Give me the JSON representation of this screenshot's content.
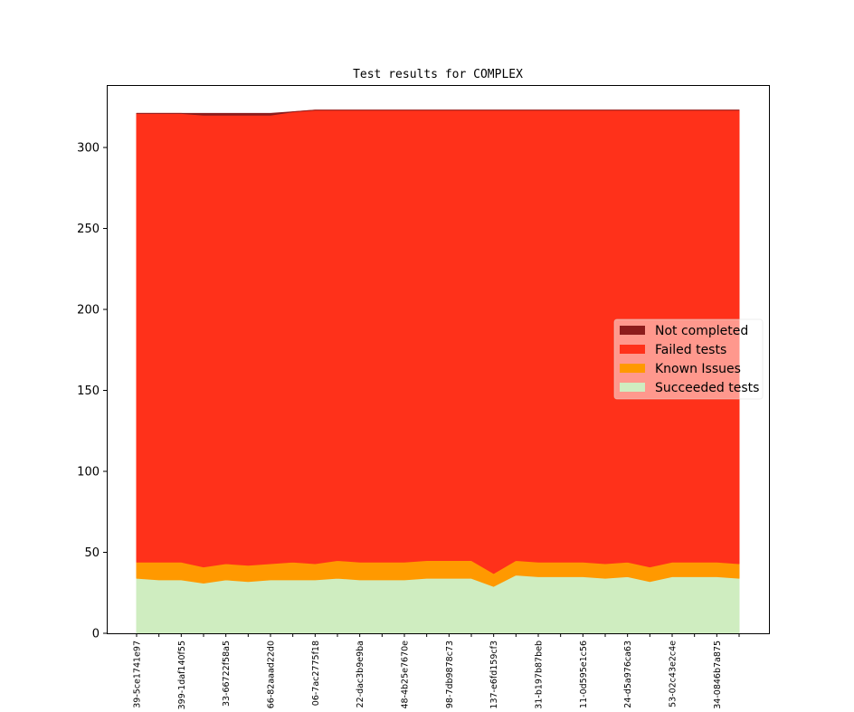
{
  "chart_data": {
    "type": "area",
    "stacked": true,
    "title": "Test results for COMPLEX",
    "xlabel": "",
    "ylabel": "",
    "ylim": [
      0,
      338
    ],
    "yticks": [
      0,
      50,
      100,
      150,
      200,
      250,
      300
    ],
    "grid": false,
    "legend_position": "center-right",
    "categories": [
      "39-5ce1741e97",
      "",
      "399-1daf140f55",
      "",
      "33-66722f58a5",
      "",
      "66-82aaad22d0",
      "",
      "06-7ac2775f18",
      "",
      "22-dac3b9e9ba",
      "",
      "48-4b25e7670e",
      "",
      "98-7db9878c73",
      "",
      "137-e6fd159cf3",
      "",
      "31-b197b87beb",
      "",
      "11-0d595e1c56",
      "",
      "24-d5a976ca63",
      "",
      "53-02c43e2c4e",
      "",
      "34-0846b7a875",
      ""
    ],
    "series": [
      {
        "name": "Succeeded tests",
        "color": "#cfedc0",
        "values": [
          34,
          33,
          33,
          31,
          33,
          32,
          33,
          33,
          33,
          34,
          33,
          33,
          33,
          34,
          34,
          34,
          29,
          36,
          35,
          35,
          35,
          34,
          35,
          32,
          35,
          35,
          35,
          34
        ]
      },
      {
        "name": "Known Issues",
        "color": "#ff9900",
        "values": [
          10,
          11,
          11,
          10,
          10,
          10,
          10,
          11,
          10,
          11,
          11,
          11,
          11,
          11,
          11,
          11,
          8,
          9,
          9,
          9,
          9,
          9,
          9,
          9,
          9,
          9,
          9,
          9
        ]
      },
      {
        "name": "Failed tests",
        "color": "#ff311a",
        "values": [
          277,
          277,
          277,
          279,
          277,
          278,
          277,
          278,
          280,
          278,
          279,
          279,
          279,
          278,
          278,
          278,
          286,
          278,
          279,
          279,
          279,
          280,
          279,
          282,
          279,
          279,
          279,
          280
        ]
      },
      {
        "name": "Not completed",
        "color": "#8c1c1c",
        "values": [
          0,
          0,
          0,
          1,
          1,
          1,
          1,
          0,
          0,
          0,
          0,
          0,
          0,
          0,
          0,
          0,
          0,
          0,
          0,
          0,
          0,
          0,
          0,
          0,
          0,
          0,
          0,
          0
        ]
      }
    ],
    "legend_order": [
      "Not completed",
      "Failed tests",
      "Known Issues",
      "Succeeded tests"
    ]
  }
}
